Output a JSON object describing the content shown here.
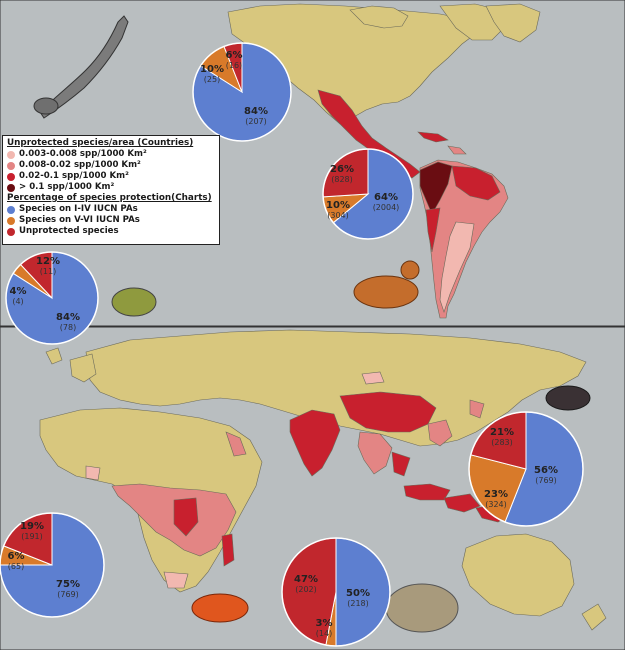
{
  "legend": {
    "countries_title": "Unprotected species/area (Countries)",
    "countries_items": [
      {
        "label": "0.003-0.008 spp/1000 Km²",
        "color": "#f2b8b0"
      },
      {
        "label": "0.008-0.02 spp/1000 Km²",
        "color": "#e38584"
      },
      {
        "label": "0.02-0.1 spp/1000 Km²",
        "color": "#c8202e"
      },
      {
        "label": "> 0.1 spp/1000 Km²",
        "color": "#6a0d12"
      }
    ],
    "charts_title": "Percentage of species protection(Charts)",
    "charts_items": [
      {
        "label": "Species on I-IV IUCN PAs",
        "color": "#5d7fd0"
      },
      {
        "label": "Species on V-VI IUCN PAs",
        "color": "#d87a2a"
      },
      {
        "label": "Unprotected species",
        "color": "#c1272d"
      }
    ]
  },
  "colors": {
    "ocean": "#b9bec0",
    "land": "#d8c77e",
    "border": "#6b6a5a",
    "i_iv": "#5d7fd0",
    "v_vi": "#d87a2a",
    "unprotected": "#c1272d"
  },
  "chart_data": [
    {
      "type": "pie",
      "region": "North America",
      "slices": [
        {
          "category": "Species on I-IV IUCN PAs",
          "percent": 84,
          "count": 207
        },
        {
          "category": "Species on V-VI IUCN PAs",
          "percent": 10,
          "count": 25
        },
        {
          "category": "Unprotected species",
          "percent": 6,
          "count": 16
        }
      ]
    },
    {
      "type": "pie",
      "region": "South America",
      "slices": [
        {
          "category": "Species on I-IV IUCN PAs",
          "percent": 64,
          "count": 2004
        },
        {
          "category": "Species on V-VI IUCN PAs",
          "percent": 10,
          "count": 304
        },
        {
          "category": "Unprotected species",
          "percent": 26,
          "count": 828
        }
      ]
    },
    {
      "type": "pie",
      "region": "Europe",
      "slices": [
        {
          "category": "Species on I-IV IUCN PAs",
          "percent": 84,
          "count": 78
        },
        {
          "category": "Species on V-VI IUCN PAs",
          "percent": 4,
          "count": 4
        },
        {
          "category": "Unprotected species",
          "percent": 12,
          "count": 11
        }
      ]
    },
    {
      "type": "pie",
      "region": "Asia",
      "slices": [
        {
          "category": "Species on I-IV IUCN PAs",
          "percent": 56,
          "count": 769
        },
        {
          "category": "Species on V-VI IUCN PAs",
          "percent": 23,
          "count": 324
        },
        {
          "category": "Unprotected species",
          "percent": 21,
          "count": 283
        }
      ]
    },
    {
      "type": "pie",
      "region": "Africa",
      "slices": [
        {
          "category": "Species on I-IV IUCN PAs",
          "percent": 75,
          "count": 769
        },
        {
          "category": "Species on V-VI IUCN PAs",
          "percent": 6,
          "count": 65
        },
        {
          "category": "Unprotected species",
          "percent": 19,
          "count": 191
        }
      ]
    },
    {
      "type": "pie",
      "region": "Oceania",
      "slices": [
        {
          "category": "Species on I-IV IUCN PAs",
          "percent": 50,
          "count": 218
        },
        {
          "category": "Species on V-VI IUCN PAs",
          "percent": 3,
          "count": 14
        },
        {
          "category": "Unprotected species",
          "percent": 47,
          "count": 202
        }
      ]
    }
  ]
}
